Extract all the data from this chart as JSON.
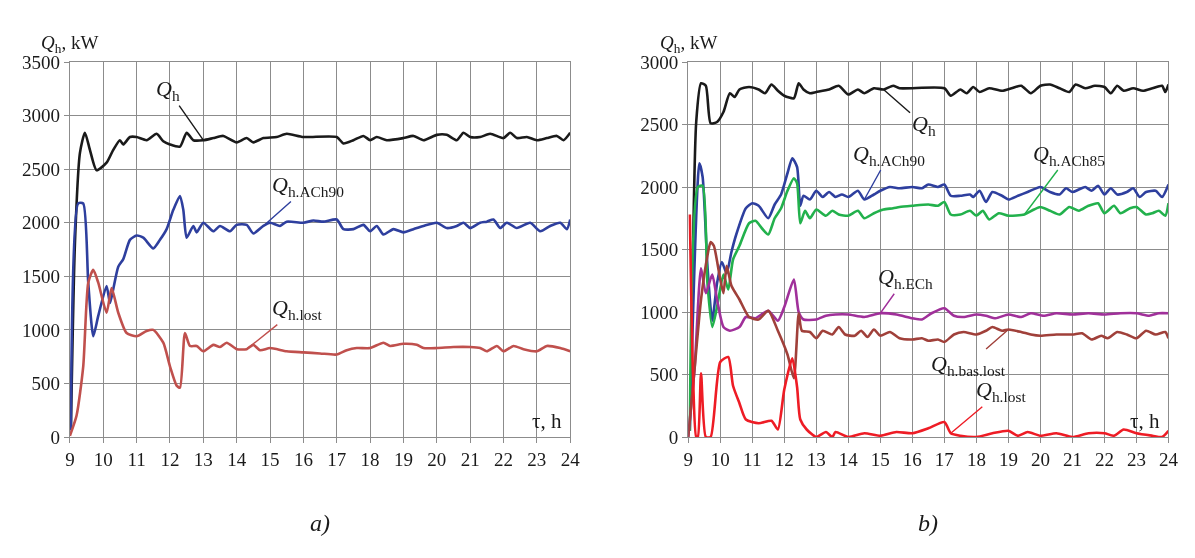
{
  "chart_data": [
    {
      "type": "line",
      "ylabel": "Q$_{h}$, kW",
      "xlabel": "τ, h",
      "annotations": [
        "a)"
      ],
      "xlim": [
        9,
        24
      ],
      "xticks": [
        9,
        10,
        11,
        12,
        13,
        14,
        15,
        16,
        17,
        18,
        19,
        20,
        21,
        22,
        23,
        24
      ],
      "ylim": [
        0,
        3500
      ],
      "yticks": [
        0,
        500,
        1000,
        1500,
        2000,
        2500,
        3000,
        3500
      ],
      "grid": true,
      "series": [
        {
          "name": "Q$_{h}$",
          "color": "#1a1a1a",
          "x": [
            9.03,
            9.15,
            9.3,
            9.45,
            9.6,
            9.8,
            10.1,
            10.3,
            10.5,
            10.6,
            10.8,
            11,
            11.3,
            11.6,
            11.8,
            12,
            12.3,
            12.5,
            12.7,
            13,
            13.3,
            13.6,
            14,
            14.3,
            14.5,
            14.8,
            15.2,
            15.5,
            16,
            17,
            17.2,
            17.5,
            17.8,
            18,
            18.2,
            18.5,
            19,
            19.3,
            19.6,
            20,
            20.3,
            20.6,
            20.8,
            21,
            21.3,
            21.6,
            22,
            22.2,
            22.4,
            22.7,
            23,
            23.3,
            23.6,
            23.8,
            24
          ],
          "values": [
            90,
            1800,
            2650,
            2840,
            2680,
            2490,
            2560,
            2680,
            2770,
            2730,
            2800,
            2800,
            2770,
            2830,
            2760,
            2730,
            2710,
            2840,
            2770,
            2770,
            2790,
            2810,
            2750,
            2790,
            2750,
            2790,
            2800,
            2830,
            2800,
            2800,
            2740,
            2770,
            2810,
            2770,
            2800,
            2770,
            2790,
            2810,
            2770,
            2820,
            2820,
            2770,
            2840,
            2800,
            2800,
            2830,
            2790,
            2840,
            2790,
            2800,
            2770,
            2790,
            2810,
            2770,
            2840
          ]
        },
        {
          "name": "Q$_{h.ACh90}$",
          "color": "#2e3f9e",
          "x": [
            9.03,
            9.25,
            9.4,
            9.55,
            9.7,
            9.85,
            10.1,
            10.2,
            10.3,
            10.45,
            10.6,
            10.8,
            11,
            11.2,
            11.5,
            11.7,
            11.9,
            12.1,
            12.3,
            12.4,
            12.5,
            12.7,
            12.8,
            13,
            13.3,
            13.5,
            13.8,
            14,
            14.3,
            14.5,
            14.8,
            15,
            15.3,
            15.5,
            16,
            16.3,
            16.6,
            17,
            17.2,
            17.5,
            17.8,
            18,
            18.2,
            18.4,
            18.7,
            19,
            19.3,
            19.6,
            20,
            20.3,
            20.6,
            20.8,
            21,
            21.3,
            21.5,
            21.7,
            21.9,
            22.1,
            22.4,
            22.8,
            23.1,
            23.4,
            23.7,
            23.9,
            24
          ],
          "values": [
            60,
            2180,
            2180,
            1440,
            940,
            1130,
            1410,
            1250,
            1380,
            1590,
            1660,
            1840,
            1880,
            1860,
            1760,
            1840,
            1940,
            2120,
            2250,
            2120,
            1860,
            1970,
            1910,
            2000,
            1920,
            1970,
            1920,
            1980,
            1980,
            1900,
            1970,
            2000,
            1970,
            2010,
            2000,
            2020,
            2010,
            2030,
            1940,
            1940,
            1980,
            1920,
            1970,
            1890,
            1940,
            1910,
            1940,
            1970,
            2000,
            1950,
            1970,
            2000,
            1950,
            2000,
            2010,
            2030,
            1950,
            2000,
            1950,
            2000,
            1920,
            1970,
            2000,
            1940,
            2030
          ]
        },
        {
          "name": "Q$_{h.lost}$",
          "color": "#c0504d",
          "x": [
            9,
            9.2,
            9.4,
            9.55,
            9.7,
            9.85,
            10.1,
            10.25,
            10.45,
            10.7,
            11,
            11.3,
            11.5,
            11.8,
            12,
            12.2,
            12.3,
            12.45,
            12.6,
            12.8,
            13,
            13.3,
            13.5,
            13.7,
            14,
            14.3,
            14.5,
            14.7,
            15,
            15.5,
            16,
            16.5,
            17,
            17.3,
            17.6,
            18,
            18.4,
            18.6,
            19,
            19.4,
            19.6,
            20,
            20.5,
            21,
            21.3,
            21.5,
            21.8,
            22,
            22.3,
            22.6,
            23,
            23.3,
            23.7,
            24
          ],
          "values": [
            10,
            200,
            660,
            1440,
            1560,
            1440,
            1160,
            1390,
            1160,
            970,
            940,
            990,
            1000,
            880,
            660,
            480,
            460,
            970,
            850,
            850,
            800,
            860,
            840,
            880,
            820,
            820,
            860,
            810,
            830,
            800,
            790,
            780,
            770,
            810,
            830,
            830,
            880,
            850,
            870,
            860,
            830,
            830,
            840,
            840,
            830,
            800,
            850,
            800,
            850,
            820,
            800,
            850,
            830,
            800
          ]
        }
      ]
    },
    {
      "type": "line",
      "ylabel": "Q$_{h}$, kW",
      "xlabel": "τ, h",
      "annotations": [
        "b)"
      ],
      "xlim": [
        9,
        24
      ],
      "xticks": [
        9,
        10,
        11,
        12,
        13,
        14,
        15,
        16,
        17,
        18,
        19,
        20,
        21,
        22,
        23,
        24
      ],
      "ylim": [
        0,
        3000
      ],
      "yticks": [
        0,
        500,
        1000,
        1500,
        2000,
        2500,
        3000
      ],
      "grid": true,
      "series": [
        {
          "name": "Q$_{h}$",
          "color": "#1a1a1a",
          "x": [
            9.12,
            9.25,
            9.4,
            9.55,
            9.7,
            9.9,
            10.1,
            10.3,
            10.45,
            10.6,
            10.9,
            11.2,
            11.4,
            11.6,
            11.8,
            12,
            12.3,
            12.45,
            12.6,
            12.8,
            13,
            13.4,
            13.7,
            14,
            14.3,
            14.5,
            14.8,
            15.1,
            15.4,
            15.6,
            17,
            17.2,
            17.5,
            17.7,
            17.9,
            18.1,
            18.4,
            18.8,
            19.1,
            19.4,
            19.7,
            20,
            20.3,
            20.6,
            20.9,
            21.1,
            21.4,
            21.7,
            22,
            22.2,
            22.4,
            22.6,
            22.9,
            23.2,
            23.5,
            23.8,
            23.9,
            24
          ],
          "values": [
            1000,
            2520,
            2830,
            2810,
            2510,
            2520,
            2600,
            2750,
            2720,
            2780,
            2800,
            2780,
            2750,
            2820,
            2770,
            2730,
            2710,
            2830,
            2780,
            2750,
            2760,
            2780,
            2810,
            2740,
            2780,
            2750,
            2790,
            2780,
            2810,
            2790,
            2790,
            2730,
            2780,
            2750,
            2800,
            2760,
            2790,
            2770,
            2790,
            2810,
            2750,
            2810,
            2820,
            2790,
            2760,
            2820,
            2790,
            2810,
            2800,
            2750,
            2810,
            2770,
            2790,
            2770,
            2790,
            2810,
            2760,
            2820
          ]
        },
        {
          "name": "Q$_{h.ACh90}$",
          "color": "#2e3f9e",
          "x": [
            9.05,
            9.35,
            9.45,
            9.6,
            9.75,
            9.9,
            10.05,
            10.2,
            10.35,
            10.5,
            10.8,
            11,
            11.2,
            11.5,
            11.7,
            11.9,
            12.1,
            12.25,
            12.4,
            12.5,
            12.6,
            12.8,
            13,
            13.2,
            13.4,
            13.6,
            13.8,
            14,
            14.3,
            14.5,
            14.8,
            15,
            15.3,
            15.6,
            16,
            16.3,
            16.5,
            16.8,
            17,
            17.2,
            17.5,
            17.8,
            17.9,
            18.1,
            18.3,
            18.5,
            18.8,
            19,
            19.3,
            19.6,
            20,
            20.3,
            20.6,
            20.8,
            21,
            21.2,
            21.4,
            21.6,
            21.8,
            22,
            22.2,
            22.4,
            22.7,
            22.9,
            23.1,
            23.3,
            23.6,
            23.8,
            24
          ],
          "values": [
            50,
            2190,
            2080,
            1370,
            930,
            1230,
            1400,
            1310,
            1480,
            1620,
            1830,
            1870,
            1850,
            1750,
            1860,
            1940,
            2110,
            2230,
            2160,
            1850,
            1930,
            1900,
            1970,
            1920,
            1960,
            1920,
            1940,
            1920,
            1970,
            1900,
            1940,
            1970,
            2000,
            1990,
            2000,
            1990,
            2020,
            2000,
            2020,
            1930,
            1930,
            1940,
            1920,
            1970,
            1880,
            1960,
            1930,
            1900,
            1930,
            1960,
            2000,
            1960,
            1940,
            1990,
            1960,
            1980,
            2000,
            1970,
            2010,
            1940,
            1990,
            1940,
            1960,
            1990,
            1920,
            1960,
            1970,
            1920,
            2020
          ]
        },
        {
          "name": "Q$_{h.ACh85}$",
          "color": "#22b14c",
          "x": [
            9.05,
            9.3,
            9.45,
            9.6,
            9.75,
            9.9,
            10.1,
            10.25,
            10.4,
            10.6,
            10.9,
            11.1,
            11.3,
            11.5,
            11.7,
            11.9,
            12.1,
            12.3,
            12.4,
            12.5,
            12.65,
            12.8,
            13,
            13.3,
            13.5,
            13.7,
            14,
            14.3,
            14.5,
            14.8,
            15.1,
            15.4,
            15.6,
            16,
            16.5,
            16.8,
            17,
            17.2,
            17.5,
            17.8,
            18,
            18.2,
            18.4,
            18.7,
            19,
            19.5,
            19.8,
            20,
            20.3,
            20.6,
            20.9,
            21.2,
            21.5,
            21.8,
            22,
            22.3,
            22.5,
            22.8,
            23,
            23.3,
            23.5,
            23.7,
            23.9,
            24
          ],
          "values": [
            50,
            2000,
            2010,
            1230,
            880,
            1040,
            1300,
            1180,
            1420,
            1530,
            1710,
            1730,
            1670,
            1620,
            1750,
            1830,
            1970,
            2070,
            2030,
            1710,
            1810,
            1750,
            1820,
            1770,
            1810,
            1780,
            1770,
            1810,
            1750,
            1790,
            1820,
            1830,
            1840,
            1850,
            1860,
            1850,
            1880,
            1780,
            1780,
            1810,
            1770,
            1810,
            1740,
            1790,
            1770,
            1780,
            1820,
            1840,
            1810,
            1780,
            1840,
            1810,
            1850,
            1870,
            1790,
            1850,
            1790,
            1830,
            1840,
            1780,
            1790,
            1810,
            1770,
            1870
          ]
        },
        {
          "name": "Q$_{h.ECh}$",
          "color": "#a0309a",
          "x": [
            9,
            9.2,
            9.4,
            9.55,
            9.75,
            9.9,
            10.1,
            10.3,
            10.6,
            10.8,
            11.1,
            11.5,
            11.8,
            12,
            12.3,
            12.45,
            12.6,
            13,
            13.3,
            13.6,
            14,
            14.5,
            15,
            15.5,
            16,
            16.3,
            16.6,
            17,
            17.3,
            17.6,
            18,
            18.3,
            18.6,
            19,
            19.4,
            19.7,
            20.1,
            20.5,
            21,
            21.5,
            22,
            22.5,
            23,
            23.4,
            23.7,
            24
          ],
          "values": [
            0,
            550,
            1350,
            1150,
            1300,
            1100,
            880,
            850,
            880,
            960,
            950,
            1010,
            930,
            1040,
            1260,
            1000,
            940,
            940,
            970,
            980,
            980,
            960,
            990,
            980,
            950,
            940,
            990,
            1030,
            970,
            960,
            980,
            970,
            950,
            980,
            960,
            990,
            970,
            990,
            980,
            990,
            980,
            990,
            990,
            970,
            990,
            990
          ]
        },
        {
          "name": "Q$_{h.bas.lost}$",
          "color": "#a0403a",
          "x": [
            9,
            9.2,
            9.4,
            9.6,
            9.7,
            9.8,
            10,
            10.1,
            10.2,
            10.35,
            10.6,
            10.9,
            11.2,
            11.5,
            11.8,
            12.1,
            12.3,
            12.45,
            12.55,
            12.8,
            13,
            13.2,
            13.5,
            13.7,
            13.9,
            14.2,
            14.4,
            14.6,
            14.8,
            15,
            15.3,
            15.6,
            16,
            16.3,
            16.5,
            16.8,
            17,
            17.3,
            17.6,
            18,
            18.3,
            18.5,
            18.8,
            19,
            19.4,
            19.7,
            20,
            20.5,
            21,
            21.3,
            21.6,
            21.9,
            22.1,
            22.4,
            22.7,
            23,
            23.3,
            23.6,
            23.9,
            24
          ],
          "values": [
            0,
            550,
            1100,
            1450,
            1560,
            1530,
            1260,
            1150,
            1370,
            1210,
            1100,
            960,
            940,
            1010,
            850,
            660,
            470,
            990,
            850,
            840,
            790,
            850,
            820,
            880,
            820,
            810,
            850,
            800,
            860,
            810,
            840,
            790,
            780,
            790,
            770,
            780,
            760,
            820,
            840,
            820,
            850,
            880,
            850,
            860,
            840,
            820,
            810,
            820,
            820,
            830,
            780,
            810,
            790,
            840,
            820,
            790,
            850,
            820,
            840,
            790
          ]
        },
        {
          "name": "Q$_{h.lost}$",
          "color": "#ee1c25",
          "x": [
            9.05,
            9.15,
            9.25,
            9.3,
            9.4,
            9.55,
            9.7,
            10,
            10.25,
            10.4,
            10.6,
            10.8,
            11.2,
            11.6,
            11.8,
            12,
            12.25,
            12.4,
            12.5,
            12.7,
            13,
            13.3,
            13.5,
            13.6,
            14,
            14.5,
            15,
            15.5,
            16,
            16.5,
            17,
            17.2,
            17.5,
            18,
            18.5,
            19,
            19.3,
            19.6,
            20,
            20.5,
            21,
            21.5,
            22,
            22.3,
            22.6,
            23,
            23.5,
            23.8,
            24
          ],
          "values": [
            1780,
            500,
            0,
            0,
            510,
            0,
            0,
            600,
            640,
            410,
            270,
            140,
            110,
            130,
            60,
            380,
            630,
            400,
            140,
            60,
            0,
            40,
            0,
            40,
            0,
            30,
            10,
            40,
            30,
            70,
            120,
            30,
            10,
            0,
            30,
            50,
            10,
            40,
            10,
            30,
            0,
            30,
            30,
            10,
            60,
            30,
            10,
            0,
            50
          ]
        }
      ]
    }
  ]
}
